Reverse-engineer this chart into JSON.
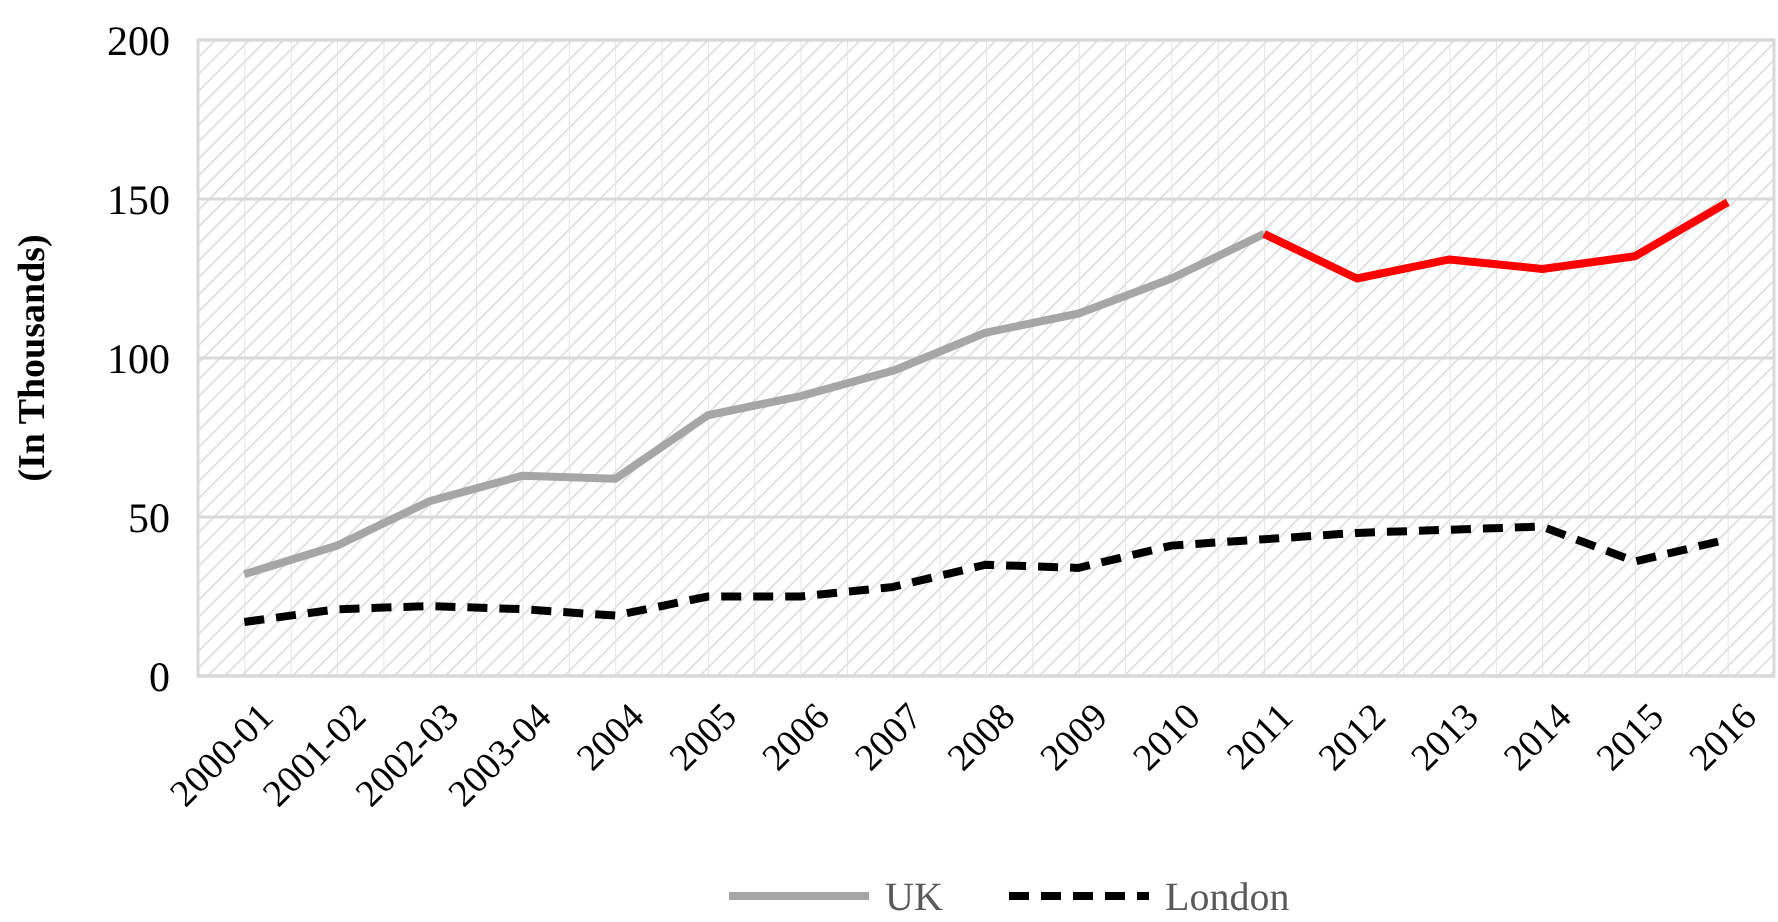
{
  "chart_data": {
    "type": "line",
    "ylabel": "(In Thousands)",
    "categories": [
      "2000-01",
      "2001-02",
      "2002-03",
      "2003-04",
      "2004",
      "2005",
      "2006",
      "2007",
      "2008",
      "2009",
      "2010",
      "2011",
      "2012",
      "2013",
      "2014",
      "2015",
      "2016"
    ],
    "series": [
      {
        "name": "UK",
        "color": "#a6a6a6",
        "line_style": "solid",
        "values": [
          32,
          41,
          55,
          63,
          62,
          82,
          88,
          96,
          108,
          114,
          125,
          139,
          null,
          null,
          null,
          null,
          null
        ]
      },
      {
        "color": "#ff0000",
        "line_style": "solid",
        "values": [
          null,
          null,
          null,
          null,
          null,
          null,
          null,
          null,
          null,
          null,
          null,
          139,
          125,
          131,
          128,
          132,
          149
        ]
      },
      {
        "name": "London",
        "color": "#000000",
        "line_style": "dashed",
        "values": [
          17,
          21,
          22,
          21,
          19,
          25,
          25,
          28,
          35,
          34,
          41,
          43,
          45,
          46,
          47,
          36,
          43
        ]
      }
    ],
    "ylim": [
      0,
      200
    ],
    "yticks": [
      0,
      50,
      100,
      150,
      200
    ],
    "grid": "y",
    "legend": "bottom",
    "marker": "none"
  }
}
